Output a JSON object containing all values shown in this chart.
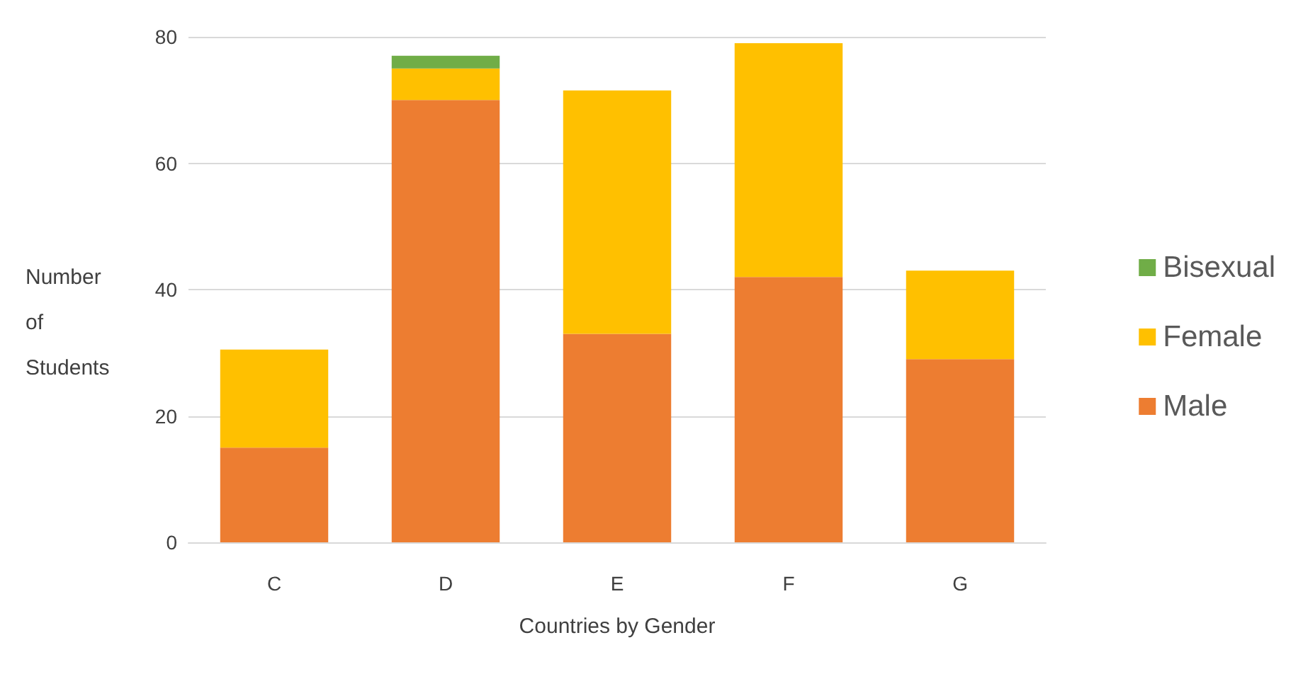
{
  "chart_data": {
    "type": "bar",
    "stacked": true,
    "xlabel": "Countries by Gender",
    "ylabel": "Number of Students",
    "categories": [
      "C",
      "D",
      "E",
      "F",
      "G"
    ],
    "series": [
      {
        "name": "Male",
        "color": "#ed7d31",
        "values": [
          15,
          70,
          33,
          42,
          29
        ]
      },
      {
        "name": "Female",
        "color": "#ffc000",
        "values": [
          15.5,
          5,
          38.5,
          37,
          14
        ]
      },
      {
        "name": "Bisexual",
        "color": "#70ad47",
        "values": [
          0,
          2,
          0,
          0,
          0
        ]
      }
    ],
    "ylim": [
      0,
      80
    ],
    "yticks": [
      0,
      20,
      40,
      60,
      80
    ],
    "grid": "y",
    "legend": "right"
  }
}
